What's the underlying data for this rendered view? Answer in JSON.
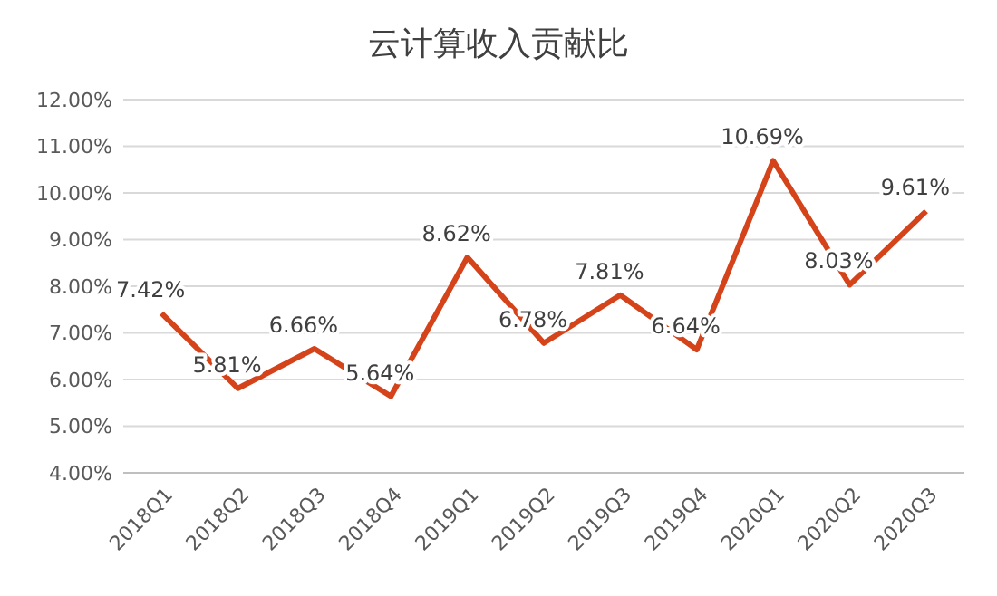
{
  "chart_data": {
    "type": "line",
    "title": "云计算收入贡献比",
    "categories": [
      "2018Q1",
      "2018Q2",
      "2018Q3",
      "2018Q4",
      "2019Q1",
      "2019Q2",
      "2019Q3",
      "2019Q4",
      "2020Q1",
      "2020Q2",
      "2020Q3"
    ],
    "series": [
      {
        "color": "#d4431a",
        "values": [
          7.42,
          5.81,
          6.66,
          5.64,
          8.62,
          6.78,
          7.81,
          6.64,
          10.69,
          8.03,
          9.61
        ],
        "value_labels": [
          "7.42%",
          "5.81%",
          "6.66%",
          "5.64%",
          "8.62%",
          "6.78%",
          "7.81%",
          "6.64%",
          "10.69%",
          "8.03%",
          "9.61%"
        ]
      }
    ],
    "ylim": [
      4,
      12
    ],
    "yticks": [
      {
        "value": 4,
        "label": "4.00%"
      },
      {
        "value": 5,
        "label": "5.00%"
      },
      {
        "value": 6,
        "label": "6.00%"
      },
      {
        "value": 7,
        "label": "7.00%"
      },
      {
        "value": 8,
        "label": "8.00%"
      },
      {
        "value": 9,
        "label": "9.00%"
      },
      {
        "value": 10,
        "label": "10.00%"
      },
      {
        "value": 11,
        "label": "11.00%"
      },
      {
        "value": 12,
        "label": "12.00%"
      }
    ],
    "grid": "y",
    "marker": "none",
    "line_style": "solid"
  }
}
